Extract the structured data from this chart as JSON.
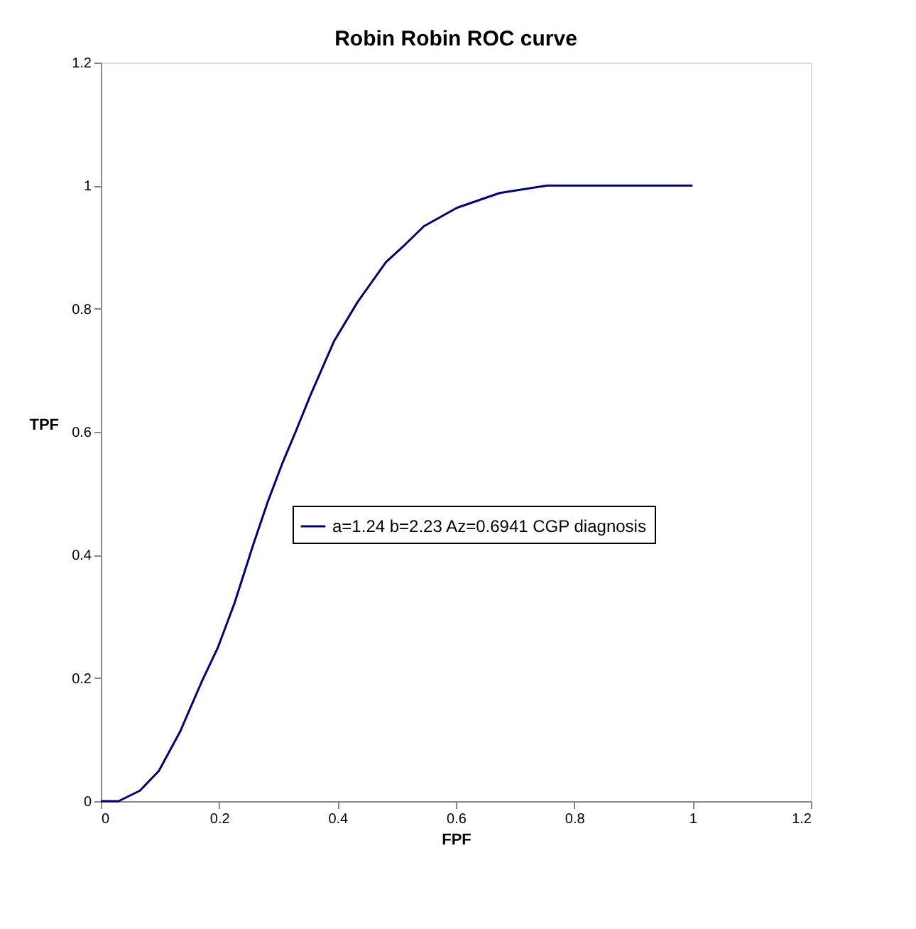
{
  "chart_data": {
    "type": "line",
    "title": "Robin Robin ROC curve",
    "xlabel": "FPF",
    "ylabel": "TPF",
    "xlim": [
      0,
      1.2
    ],
    "xticks": [
      0,
      0.2,
      0.4,
      0.6,
      0.8,
      1,
      1.2
    ],
    "ylim": [
      0,
      1.2
    ],
    "yticks": [
      0,
      0.2,
      0.4,
      0.6,
      0.8,
      1,
      1.2
    ],
    "grid": false,
    "legend": "right",
    "marker": "none",
    "line_style": "solid",
    "series": [
      {
        "name": "a=1.24 b=2.23 Az=0.6941 CGP diagnosis",
        "color": "#000080",
        "x": [
          0,
          0.03,
          0.066,
          0.098,
          0.134,
          0.17,
          0.198,
          0.226,
          0.258,
          0.282,
          0.306,
          0.33,
          0.354,
          0.394,
          0.434,
          0.482,
          0.514,
          0.546,
          0.602,
          0.674,
          0.754,
          1.0
        ],
        "values": [
          0,
          0,
          0.017,
          0.049,
          0.113,
          0.193,
          0.25,
          0.322,
          0.418,
          0.486,
          0.547,
          0.602,
          0.659,
          0.747,
          0.811,
          0.876,
          0.904,
          0.934,
          0.964,
          0.988,
          1,
          1
        ]
      }
    ]
  }
}
